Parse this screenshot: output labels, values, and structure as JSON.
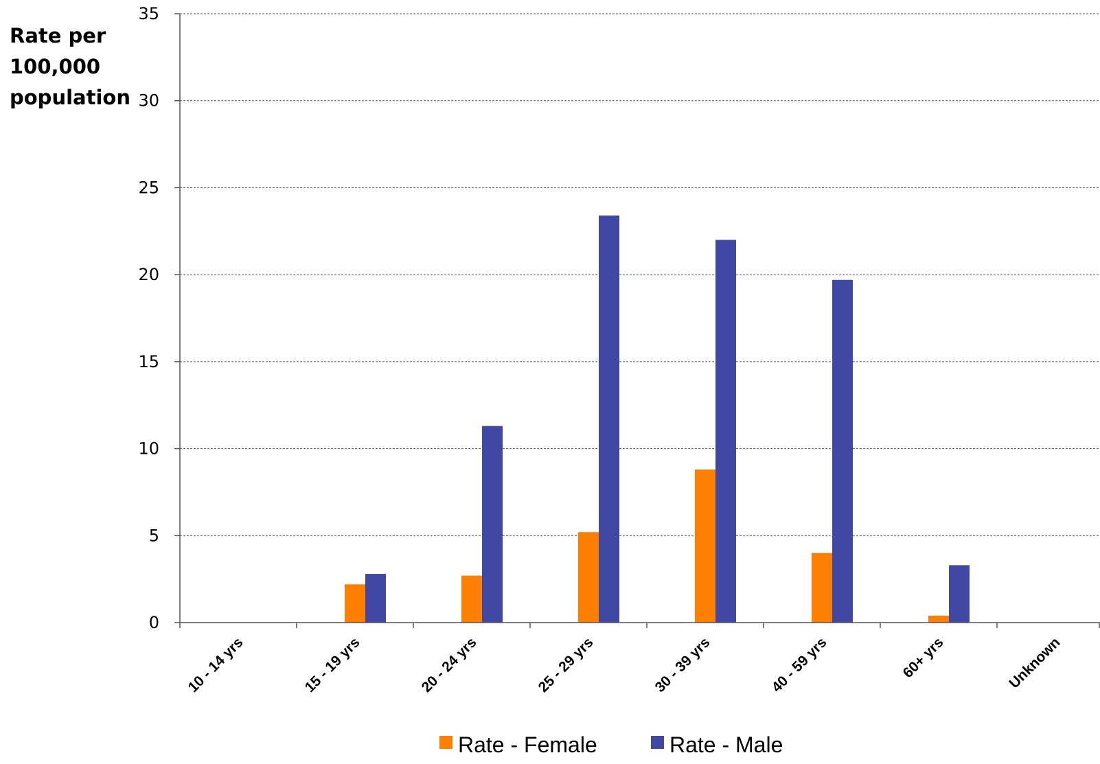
{
  "chart_data": {
    "type": "bar",
    "ylabel_lines": [
      "Rate per",
      "100,000",
      "population"
    ],
    "xlabel": "",
    "ylim": [
      0,
      35
    ],
    "yticks": [
      0,
      5,
      10,
      15,
      20,
      25,
      30,
      35
    ],
    "grid": true,
    "legend_position": "bottom-center",
    "categories": [
      "10 - 14 yrs",
      "15 - 19 yrs",
      "20 - 24 yrs",
      "25 - 29 yrs",
      "30 - 39 yrs",
      "40 - 59 yrs",
      "60+ yrs",
      "Unknown"
    ],
    "series": [
      {
        "name": "Rate - Female",
        "color": "#ff7f00",
        "values": [
          0,
          2.2,
          2.7,
          5.2,
          8.8,
          4.0,
          0.4,
          0
        ]
      },
      {
        "name": "Rate - Male",
        "color": "#4048a4",
        "values": [
          0,
          2.8,
          11.3,
          23.4,
          22.0,
          19.7,
          3.3,
          0
        ]
      }
    ]
  }
}
